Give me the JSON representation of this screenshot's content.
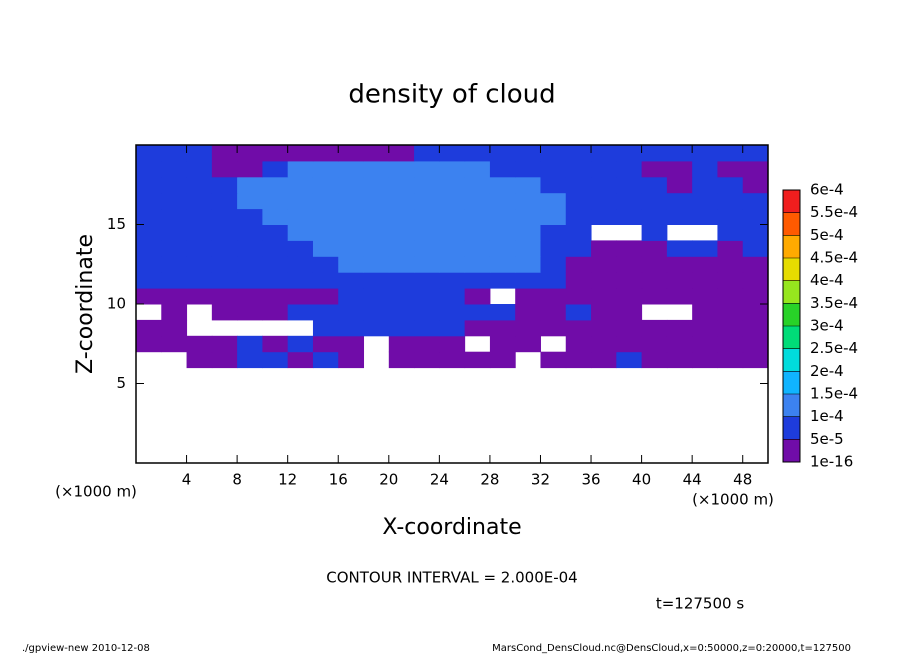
{
  "chart_data": {
    "type": "contour",
    "title": "density of cloud",
    "xlabel": "X-coordinate",
    "ylabel": "Z-coordinate",
    "x_unit_label": "(×1000 m)",
    "annotation": "CONTOUR INTERVAL = 2.000E-04",
    "time_label": "t=127500 s",
    "footer_left": "./gpview-new  2010-12-08",
    "footer_right": "MarsCond_DensCloud.nc@DensCloud,x=0:50000,z=0:20000,t=127500",
    "xlim": [
      0,
      50
    ],
    "ylim": [
      0,
      20
    ],
    "xticks": [
      4,
      8,
      12,
      16,
      20,
      24,
      28,
      32,
      36,
      40,
      44,
      48
    ],
    "yticks": [
      5,
      10,
      15
    ],
    "x_edges": [
      0,
      2,
      4,
      6,
      8,
      10,
      12,
      14,
      16,
      18,
      20,
      22,
      24,
      26,
      28,
      30,
      32,
      34,
      36,
      38,
      40,
      42,
      44,
      46,
      48,
      50
    ],
    "y_edges": [
      6,
      7,
      8,
      9,
      10,
      11,
      12,
      13,
      14,
      15,
      16,
      17,
      18,
      19,
      20
    ],
    "values": [
      [
        null,
        null,
        2e-05,
        2e-05,
        7e-05,
        7e-05,
        2e-05,
        7e-05,
        2e-05,
        null,
        2e-05,
        2e-05,
        2e-05,
        2e-05,
        2e-05,
        null,
        2e-05,
        2e-05,
        2e-05,
        7e-05,
        2e-05,
        2e-05,
        2e-05,
        2e-05,
        2e-05
      ],
      [
        2e-05,
        2e-05,
        2e-05,
        2e-05,
        7e-05,
        2e-05,
        7e-05,
        2e-05,
        2e-05,
        null,
        2e-05,
        2e-05,
        2e-05,
        null,
        2e-05,
        2e-05,
        null,
        2e-05,
        2e-05,
        2e-05,
        2e-05,
        2e-05,
        2e-05,
        2e-05,
        2e-05
      ],
      [
        2e-05,
        2e-05,
        null,
        null,
        null,
        null,
        null,
        7e-05,
        7e-05,
        7e-05,
        7e-05,
        7e-05,
        7e-05,
        2e-05,
        2e-05,
        2e-05,
        2e-05,
        2e-05,
        2e-05,
        2e-05,
        2e-05,
        2e-05,
        2e-05,
        2e-05,
        2e-05
      ],
      [
        null,
        2e-05,
        null,
        2e-05,
        2e-05,
        2e-05,
        7e-05,
        7e-05,
        7e-05,
        7e-05,
        7e-05,
        7e-05,
        7e-05,
        7e-05,
        7e-05,
        2e-05,
        2e-05,
        7e-05,
        2e-05,
        2e-05,
        null,
        null,
        2e-05,
        2e-05,
        2e-05
      ],
      [
        2e-05,
        2e-05,
        2e-05,
        2e-05,
        2e-05,
        2e-05,
        2e-05,
        2e-05,
        7e-05,
        7e-05,
        7e-05,
        7e-05,
        7e-05,
        2e-05,
        null,
        2e-05,
        2e-05,
        2e-05,
        2e-05,
        2e-05,
        2e-05,
        2e-05,
        2e-05,
        2e-05,
        2e-05
      ],
      [
        7e-05,
        7e-05,
        7e-05,
        7e-05,
        7e-05,
        7e-05,
        7e-05,
        7e-05,
        7e-05,
        7e-05,
        7e-05,
        7e-05,
        7e-05,
        7e-05,
        7e-05,
        7e-05,
        7e-05,
        2e-05,
        2e-05,
        2e-05,
        2e-05,
        2e-05,
        2e-05,
        2e-05,
        2e-05
      ],
      [
        7e-05,
        7e-05,
        7e-05,
        7e-05,
        7e-05,
        7e-05,
        7e-05,
        7e-05,
        0.00012,
        0.00012,
        0.00012,
        0.00012,
        0.00012,
        0.00012,
        0.00012,
        0.00012,
        7e-05,
        2e-05,
        2e-05,
        2e-05,
        2e-05,
        2e-05,
        2e-05,
        2e-05,
        2e-05
      ],
      [
        7e-05,
        7e-05,
        7e-05,
        7e-05,
        7e-05,
        7e-05,
        7e-05,
        0.00012,
        0.00012,
        0.00012,
        0.00012,
        0.00012,
        0.00012,
        0.00012,
        0.00012,
        0.00012,
        7e-05,
        7e-05,
        2e-05,
        2e-05,
        2e-05,
        7e-05,
        7e-05,
        2e-05,
        7e-05
      ],
      [
        7e-05,
        7e-05,
        7e-05,
        7e-05,
        7e-05,
        7e-05,
        0.00012,
        0.00012,
        0.00012,
        0.00012,
        0.00012,
        0.00012,
        0.00012,
        0.00012,
        0.00012,
        0.00012,
        7e-05,
        7e-05,
        null,
        null,
        7e-05,
        null,
        null,
        7e-05,
        7e-05
      ],
      [
        7e-05,
        7e-05,
        7e-05,
        7e-05,
        7e-05,
        0.00012,
        0.00012,
        0.00012,
        0.00012,
        0.00012,
        0.00012,
        0.00012,
        0.00012,
        0.00012,
        0.00012,
        0.00012,
        0.00012,
        7e-05,
        7e-05,
        7e-05,
        7e-05,
        7e-05,
        7e-05,
        7e-05,
        7e-05
      ],
      [
        7e-05,
        7e-05,
        7e-05,
        7e-05,
        0.00012,
        0.00012,
        0.00012,
        0.00012,
        0.00012,
        0.00012,
        0.00012,
        0.00012,
        0.00012,
        0.00012,
        0.00012,
        0.00012,
        0.00012,
        7e-05,
        7e-05,
        7e-05,
        7e-05,
        7e-05,
        7e-05,
        7e-05,
        7e-05
      ],
      [
        7e-05,
        7e-05,
        7e-05,
        7e-05,
        0.00012,
        0.00012,
        0.00012,
        0.00012,
        0.00012,
        0.00012,
        0.00012,
        0.00012,
        0.00012,
        0.00012,
        0.00012,
        0.00012,
        7e-05,
        7e-05,
        7e-05,
        7e-05,
        7e-05,
        2e-05,
        7e-05,
        7e-05,
        2e-05
      ],
      [
        7e-05,
        7e-05,
        7e-05,
        2e-05,
        2e-05,
        7e-05,
        0.00012,
        0.00012,
        0.00012,
        0.00012,
        0.00012,
        0.00012,
        0.00012,
        0.00012,
        7e-05,
        7e-05,
        7e-05,
        7e-05,
        7e-05,
        7e-05,
        2e-05,
        2e-05,
        7e-05,
        2e-05,
        2e-05
      ],
      [
        7e-05,
        7e-05,
        7e-05,
        2e-05,
        2e-05,
        2e-05,
        2e-05,
        2e-05,
        2e-05,
        2e-05,
        2e-05,
        7e-05,
        7e-05,
        7e-05,
        7e-05,
        7e-05,
        7e-05,
        7e-05,
        7e-05,
        7e-05,
        7e-05,
        7e-05,
        7e-05,
        7e-05,
        7e-05
      ]
    ],
    "colorbar_ticks": [
      {
        "value": 1e-16,
        "label": "1e-16"
      },
      {
        "value": 5e-05,
        "label": "5e-5"
      },
      {
        "value": 0.0001,
        "label": "1e-4"
      },
      {
        "value": 0.00015,
        "label": "1.5e-4"
      },
      {
        "value": 0.0002,
        "label": "2e-4"
      },
      {
        "value": 0.00025,
        "label": "2.5e-4"
      },
      {
        "value": 0.0003,
        "label": "3e-4"
      },
      {
        "value": 0.00035,
        "label": "3.5e-4"
      },
      {
        "value": 0.0004,
        "label": "4e-4"
      },
      {
        "value": 0.00045,
        "label": "4.5e-4"
      },
      {
        "value": 0.0005,
        "label": "5e-4"
      },
      {
        "value": 0.00055,
        "label": "5.5e-4"
      },
      {
        "value": 0.0006,
        "label": "6e-4"
      }
    ],
    "colors": [
      "#700ca8",
      "#1e3cdc",
      "#3c82f0",
      "#10b4ff",
      "#00dcdc",
      "#00dc78",
      "#28d228",
      "#96e61e",
      "#e6dc00",
      "#ffaa00",
      "#ff5a00",
      "#f01e1e",
      "#ff8c82"
    ]
  }
}
